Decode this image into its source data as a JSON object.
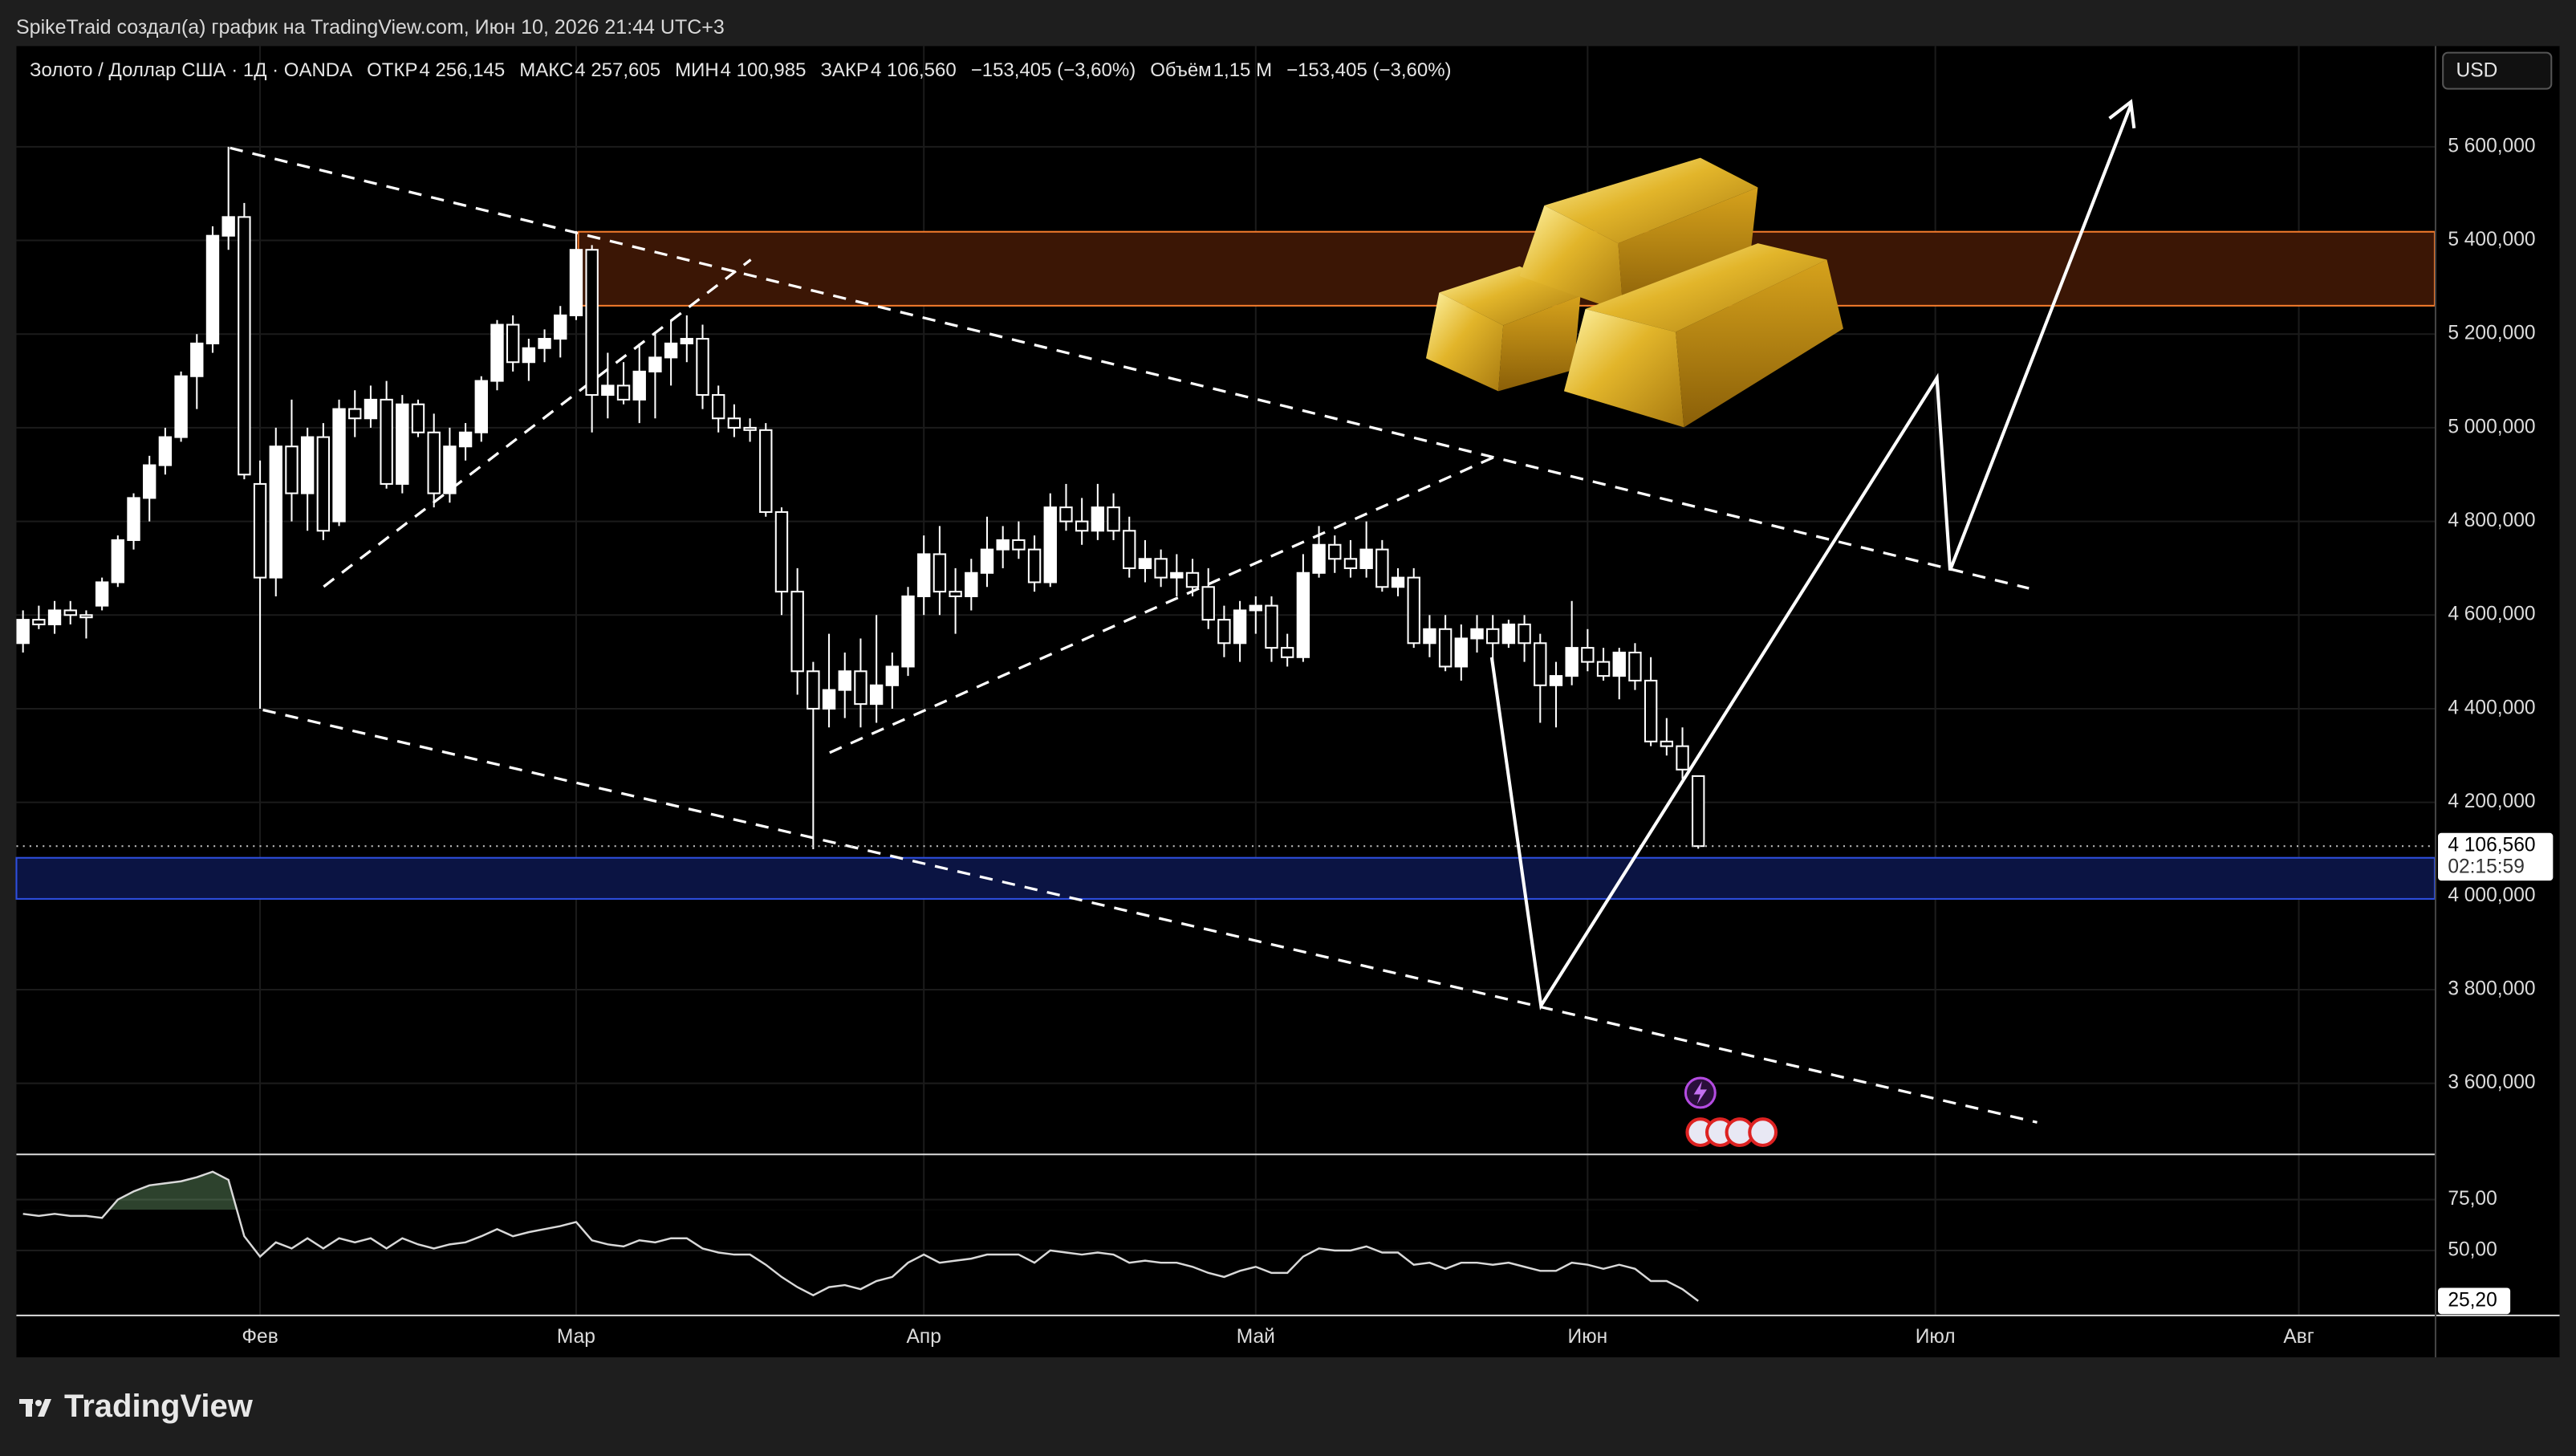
{
  "header": {
    "text": "SpikeTraid создал(а) график на TradingView.com, Июн 10, 2026 21:44 UTC+3"
  },
  "footer": {
    "logo": "TradingView"
  },
  "chart_data": {
    "type": "candlestick",
    "title": "Золото / Доллар США · 1Д · OANDA",
    "legend": [
      {
        "label": "ОТКР",
        "value": "4 256,145"
      },
      {
        "label": "МАКС",
        "value": "4 257,605"
      },
      {
        "label": "МИН",
        "value": "4 100,985"
      },
      {
        "label": "ЗАКР",
        "value": "4 106,560"
      },
      {
        "value": "−153,405 (−3,60%)"
      },
      {
        "label": "Объём",
        "value": "1,15 M"
      },
      {
        "value": "−153,405 (−3,60%)"
      }
    ],
    "currency": "USD",
    "categories": [
      null,
      null,
      null,
      null,
      null,
      null,
      null,
      null,
      null,
      null,
      null,
      null,
      null,
      null,
      null,
      "Фев",
      null,
      null,
      null,
      null,
      null,
      null,
      null,
      null,
      null,
      null,
      null,
      null,
      null,
      null,
      null,
      null,
      null,
      null,
      null,
      "Мар",
      null,
      null,
      null,
      null,
      null,
      null,
      null,
      null,
      null,
      null,
      null,
      null,
      null,
      null,
      null,
      null,
      null,
      null,
      null,
      null,
      null,
      "Апр",
      null,
      null,
      null,
      null,
      null,
      null,
      null,
      null,
      null,
      null,
      null,
      null,
      null,
      null,
      null,
      null,
      null,
      null,
      null,
      null,
      "Май",
      null,
      null,
      null,
      null,
      null,
      null,
      null,
      null,
      null,
      null,
      null,
      null,
      null,
      null,
      null,
      null,
      null,
      null,
      null,
      null,
      "Июн",
      null,
      null,
      null,
      null,
      null,
      null,
      null
    ],
    "future_categories": [
      null,
      null,
      null,
      null,
      null,
      null,
      null,
      null,
      null,
      null,
      null,
      null,
      null,
      null,
      "Июл",
      null,
      null,
      null,
      null,
      null,
      null,
      null,
      null,
      null,
      null,
      null,
      null,
      null,
      null,
      null,
      null,
      null,
      null,
      null,
      null,
      null,
      null,
      "Авг",
      null,
      null,
      null,
      null,
      null,
      null,
      null,
      null
    ],
    "open": [
      4540,
      4590,
      4580,
      4610,
      4600,
      4620,
      4670,
      4760,
      4850,
      4920,
      4980,
      5110,
      5180,
      5410,
      5450,
      4880,
      4680,
      4960,
      4860,
      4980,
      4800,
      5040,
      5020,
      5060,
      4880,
      5050,
      4990,
      4860,
      4960,
      4990,
      5100,
      5220,
      5140,
      5170,
      5190,
      5240,
      5380,
      5070,
      5090,
      5060,
      5120,
      5150,
      5180,
      5190,
      5070,
      5020,
      5000,
      4995,
      4820,
      4650,
      4480,
      4400,
      4440,
      4480,
      4410,
      4450,
      4490,
      4640,
      4730,
      4650,
      4640,
      4690,
      4740,
      4760,
      4740,
      4670,
      4830,
      4800,
      4780,
      4830,
      4780,
      4700,
      4720,
      4680,
      4690,
      4660,
      4590,
      4540,
      4610,
      4620,
      4530,
      4510,
      4690,
      4750,
      4720,
      4700,
      4740,
      4660,
      4680,
      4540,
      4570,
      4490,
      4550,
      4570,
      4540,
      4580,
      4540,
      4450,
      4470,
      4530,
      4500,
      4470,
      4520,
      4460,
      4330,
      4320,
      4256.145
    ],
    "high": [
      4610,
      4620,
      4630,
      4630,
      4610,
      4680,
      4770,
      4860,
      4940,
      5000,
      5120,
      5200,
      5430,
      5600,
      5480,
      4930,
      5000,
      5060,
      5000,
      5010,
      5060,
      5080,
      5090,
      5100,
      5070,
      5060,
      5030,
      5000,
      5010,
      5110,
      5230,
      5240,
      5190,
      5210,
      5260,
      5420,
      5390,
      5160,
      5140,
      5180,
      5200,
      5230,
      5240,
      5220,
      5090,
      5050,
      5020,
      5010,
      4830,
      4700,
      4500,
      4560,
      4520,
      4550,
      4600,
      4520,
      4660,
      4770,
      4790,
      4700,
      4720,
      4810,
      4790,
      4800,
      4770,
      4860,
      4880,
      4850,
      4880,
      4860,
      4810,
      4760,
      4740,
      4730,
      4720,
      4700,
      4620,
      4630,
      4640,
      4640,
      4560,
      4730,
      4790,
      4770,
      4760,
      4800,
      4760,
      4700,
      4700,
      4600,
      4600,
      4580,
      4600,
      4600,
      4590,
      4600,
      4560,
      4500,
      4630,
      4570,
      4530,
      4530,
      4540,
      4510,
      4380,
      4360,
      4257.605
    ],
    "low": [
      4520,
      4570,
      4560,
      4580,
      4550,
      4610,
      4660,
      4740,
      4800,
      4900,
      4970,
      5040,
      5160,
      5380,
      4890,
      4400,
      4640,
      4800,
      4780,
      4760,
      4790,
      4980,
      5000,
      4870,
      4860,
      4980,
      4830,
      4840,
      4930,
      4970,
      5080,
      5120,
      5100,
      5140,
      5150,
      5230,
      4990,
      5020,
      5050,
      5010,
      5020,
      5090,
      5140,
      5040,
      4990,
      4980,
      4970,
      4810,
      4600,
      4430,
      4100,
      4360,
      4380,
      4360,
      4370,
      4400,
      4470,
      4600,
      4600,
      4560,
      4610,
      4660,
      4700,
      4720,
      4650,
      4660,
      4780,
      4750,
      4760,
      4760,
      4680,
      4670,
      4660,
      4640,
      4640,
      4570,
      4510,
      4500,
      4560,
      4500,
      4490,
      4500,
      4680,
      4690,
      4680,
      4680,
      4650,
      4640,
      4530,
      4510,
      4480,
      4460,
      4520,
      4500,
      4530,
      4500,
      4370,
      4360,
      4450,
      4480,
      4460,
      4420,
      4440,
      4320,
      4300,
      4250,
      4100.985
    ],
    "close": [
      4590,
      4580,
      4610,
      4600,
      4595,
      4670,
      4760,
      4850,
      4920,
      4980,
      5110,
      5180,
      5410,
      5450,
      4900,
      4680,
      4960,
      4860,
      4980,
      4780,
      5040,
      5020,
      5060,
      4880,
      5050,
      4990,
      4860,
      4960,
      4990,
      5100,
      5220,
      5140,
      5170,
      5190,
      5240,
      5380,
      5070,
      5090,
      5060,
      5120,
      5150,
      5180,
      5190,
      5070,
      5020,
      5000,
      4995,
      4820,
      4650,
      4480,
      4400,
      4440,
      4480,
      4410,
      4450,
      4490,
      4640,
      4730,
      4650,
      4640,
      4690,
      4740,
      4760,
      4740,
      4670,
      4830,
      4800,
      4780,
      4830,
      4780,
      4700,
      4720,
      4680,
      4690,
      4660,
      4590,
      4540,
      4610,
      4620,
      4530,
      4510,
      4690,
      4750,
      4720,
      4700,
      4740,
      4660,
      4680,
      4540,
      4570,
      4490,
      4550,
      4570,
      4540,
      4580,
      4540,
      4450,
      4470,
      4530,
      4500,
      4470,
      4520,
      4460,
      4330,
      4320,
      4270,
      4106.56
    ],
    "up_color": "#ffffff",
    "down_color": "#000000",
    "ylim": [
      3450,
      5815
    ],
    "yticks": [
      {
        "value": 5600,
        "label": "5 600,000"
      },
      {
        "value": 5400,
        "label": "5 400,000"
      },
      {
        "value": 5200,
        "label": "5 200,000"
      },
      {
        "value": 5000,
        "label": "5 000,000"
      },
      {
        "value": 4800,
        "label": "4 800,000"
      },
      {
        "value": 4600,
        "label": "4 600,000"
      },
      {
        "value": 4400,
        "label": "4 400,000"
      },
      {
        "value": 4200,
        "label": "4 200,000"
      },
      {
        "value": 4000,
        "label": "4 000,000"
      },
      {
        "value": 3800,
        "label": "3 800,000"
      },
      {
        "value": 3600,
        "label": "3 600,000"
      }
    ],
    "last_price": {
      "value": 4106.56,
      "label": "4 106,560"
    },
    "countdown": "02:15:59",
    "indicator": {
      "type": "line",
      "color": "#d9d9d9",
      "values": [
        68,
        67,
        68,
        67,
        67,
        66,
        75,
        79,
        82,
        83,
        84,
        86,
        88.7,
        84.7,
        57,
        47,
        54,
        51,
        56,
        51,
        56,
        54,
        56,
        51,
        56,
        53,
        51,
        53,
        54,
        57,
        60.5,
        57,
        59,
        60.5,
        62,
        64,
        55,
        53,
        52,
        55,
        54,
        56,
        56,
        51,
        49,
        48,
        48,
        43,
        37,
        32,
        28,
        32,
        33,
        31,
        35,
        37,
        44,
        48,
        44,
        45,
        46,
        48,
        48,
        48,
        44,
        50,
        49,
        48,
        49,
        48,
        44,
        45,
        44,
        44,
        42,
        39,
        37,
        40,
        42,
        39,
        39,
        47,
        51,
        50,
        50,
        52,
        49,
        49,
        43,
        44,
        41,
        44,
        44,
        43,
        44,
        42,
        40,
        40,
        44,
        43,
        41,
        43,
        41,
        35,
        35,
        31,
        25.2
      ],
      "value_labels": [
        null,
        null,
        null,
        null,
        null,
        null,
        null,
        null,
        null,
        null,
        null,
        null,
        null,
        null,
        null,
        null,
        null,
        null,
        null,
        null,
        null,
        null,
        null,
        null,
        null,
        null,
        null,
        null,
        null,
        null,
        null,
        null,
        null,
        null,
        null,
        null,
        null,
        null,
        null,
        null,
        null,
        null,
        null,
        null,
        null,
        null,
        null,
        null,
        null,
        null,
        null,
        null,
        null,
        null,
        null,
        null,
        null,
        null,
        null,
        null,
        null,
        null,
        null,
        null,
        null,
        null,
        null,
        null,
        null,
        null,
        null,
        null,
        null,
        null,
        null,
        null,
        null,
        null,
        null,
        null,
        null,
        null,
        null,
        null,
        null,
        null,
        null,
        null,
        null,
        null,
        null,
        null,
        null,
        null,
        null,
        null,
        null,
        null,
        null,
        null,
        null,
        null,
        null,
        null,
        null,
        null,
        "25,20"
      ],
      "ylim": [
        18.5,
        96.8
      ],
      "yticks": [
        {
          "value": 75,
          "label": "75,00"
        },
        {
          "value": 50,
          "label": "50,00"
        }
      ],
      "overbought": 70
    }
  }
}
